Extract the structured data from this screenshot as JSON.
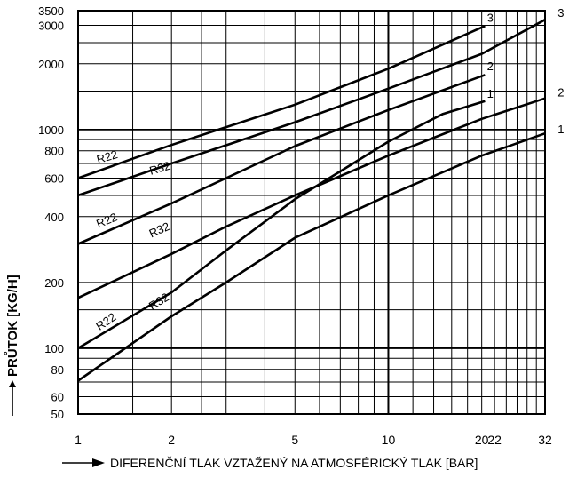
{
  "chart_data": {
    "type": "line",
    "title": "",
    "xlabel": "DIFERENČNÍ TLAK VZTAŽENÝ NA ATMOSFÉRICKÝ TLAK [BAR]",
    "ylabel": "PRŮTOK [KG/H]",
    "xscale": "log",
    "yscale": "log",
    "xlim": [
      1,
      32
    ],
    "ylim": [
      50,
      3500
    ],
    "grid": true,
    "xticks": [
      1,
      2,
      5,
      10,
      20,
      22,
      32
    ],
    "yticks": [
      50,
      60,
      80,
      100,
      200,
      400,
      600,
      800,
      1000,
      2000,
      3000,
      3500
    ],
    "series": [
      {
        "name": "",
        "id": "r22-1",
        "x": [
          1,
          2,
          3,
          5,
          10,
          15,
          20.5
        ],
        "y": [
          100,
          180,
          280,
          480,
          880,
          1180,
          1350
        ]
      },
      {
        "name": "",
        "id": "r32-1",
        "x": [
          1,
          2,
          3,
          5,
          10,
          20,
          32
        ],
        "y": [
          71,
          140,
          200,
          320,
          500,
          760,
          960
        ]
      },
      {
        "name": "",
        "id": "r22-2",
        "x": [
          1,
          2,
          3,
          5,
          10,
          20.5
        ],
        "y": [
          300,
          460,
          600,
          840,
          1230,
          1780
        ]
      },
      {
        "name": "",
        "id": "r32-2",
        "x": [
          1,
          2,
          3,
          5,
          10,
          20,
          32
        ],
        "y": [
          170,
          270,
          360,
          500,
          760,
          1120,
          1390
        ]
      },
      {
        "name": "",
        "id": "r22-3",
        "x": [
          1,
          2,
          5,
          10,
          20.5
        ],
        "y": [
          600,
          850,
          1300,
          1900,
          2980
        ]
      },
      {
        "name": "",
        "id": "r32-3",
        "x": [
          1,
          2,
          5,
          10,
          20,
          32
        ],
        "y": [
          500,
          700,
          1080,
          1540,
          2220,
          3180
        ]
      }
    ],
    "curve_labels": [
      {
        "text": "R22",
        "series": "r22-3",
        "x": 1.25,
        "y": 720,
        "angle": -16
      },
      {
        "text": "R32",
        "series": "r32-3",
        "x": 1.85,
        "y": 640,
        "angle": -16
      },
      {
        "text": "R22",
        "series": "r22-2",
        "x": 1.25,
        "y": 370,
        "angle": -22
      },
      {
        "text": "R32",
        "series": "r32-2",
        "x": 1.85,
        "y": 335,
        "angle": -24
      },
      {
        "text": "R22",
        "series": "r22-1",
        "x": 1.25,
        "y": 128,
        "angle": -34
      },
      {
        "text": "R32",
        "series": "r32-1",
        "x": 1.85,
        "y": 158,
        "angle": -32
      }
    ],
    "end_labels": [
      {
        "text": "3",
        "x": 21.3,
        "y": 3120
      },
      {
        "text": "2",
        "x": 21.3,
        "y": 1870
      },
      {
        "text": "1",
        "x": 21.3,
        "y": 1400
      },
      {
        "text": "3",
        "x": 36,
        "y": 3280
      },
      {
        "text": "2",
        "x": 36,
        "y": 1420
      },
      {
        "text": "1",
        "x": 36,
        "y": 960
      }
    ]
  }
}
